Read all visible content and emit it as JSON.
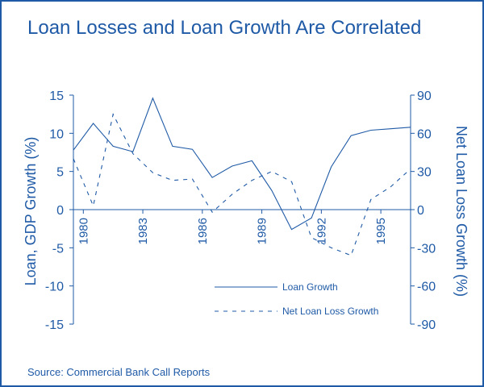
{
  "title": "Loan Losses and Loan Growth Are Correlated",
  "source": "Source: Commercial Bank Call Reports",
  "colors": {
    "accent": "#1f5aa6",
    "frame": "#1f5aa6",
    "background": "#ffffff"
  },
  "chart_data": {
    "type": "line",
    "title": "Loan Losses and Loan Growth Are Correlated",
    "ylabel": "Loan, GDP Growth (%)",
    "y2label": "Net Loan Loss Growth (%)",
    "ylim": [
      -15,
      15
    ],
    "yticks": [
      15,
      10,
      5,
      0,
      -5,
      -10,
      -15
    ],
    "y2lim": [
      -90,
      90
    ],
    "y2ticks": [
      90,
      60,
      30,
      0,
      -30,
      -60,
      -90
    ],
    "xlim": [
      1979.5,
      1996.5
    ],
    "xticks": [
      1980,
      1983,
      1986,
      1989,
      1992,
      1995
    ],
    "grid": false,
    "legend": "bottom-right",
    "series": [
      {
        "name": "Loan Growth",
        "axis": "left",
        "style": "solid",
        "x": [
          1979.5,
          1980.5,
          1981.5,
          1982.5,
          1983.5,
          1984.5,
          1985.5,
          1986.5,
          1987.5,
          1988.5,
          1989.5,
          1990.5,
          1991.5,
          1992.5,
          1993.5,
          1994.5,
          1995.5,
          1996.5
        ],
        "values": [
          7.8,
          11.3,
          8.3,
          7.6,
          14.6,
          8.3,
          7.9,
          4.2,
          5.7,
          6.4,
          2.5,
          -2.6,
          -1.1,
          5.6,
          9.7,
          10.4,
          10.6,
          10.8
        ]
      },
      {
        "name": "Net Loan Loss Growth",
        "axis": "right",
        "style": "dashed",
        "x": [
          1979.5,
          1980.5,
          1981.5,
          1982.5,
          1983.5,
          1984.5,
          1985.5,
          1986.5,
          1987.5,
          1988.5,
          1989.5,
          1990.5,
          1991.5,
          1992.5,
          1993.5,
          1994.5,
          1995.5,
          1996.5
        ],
        "values": [
          40,
          3,
          75,
          44,
          29,
          23,
          24,
          -2,
          12,
          23,
          30,
          22,
          -22,
          -30,
          -36,
          8,
          18,
          32
        ]
      }
    ]
  }
}
